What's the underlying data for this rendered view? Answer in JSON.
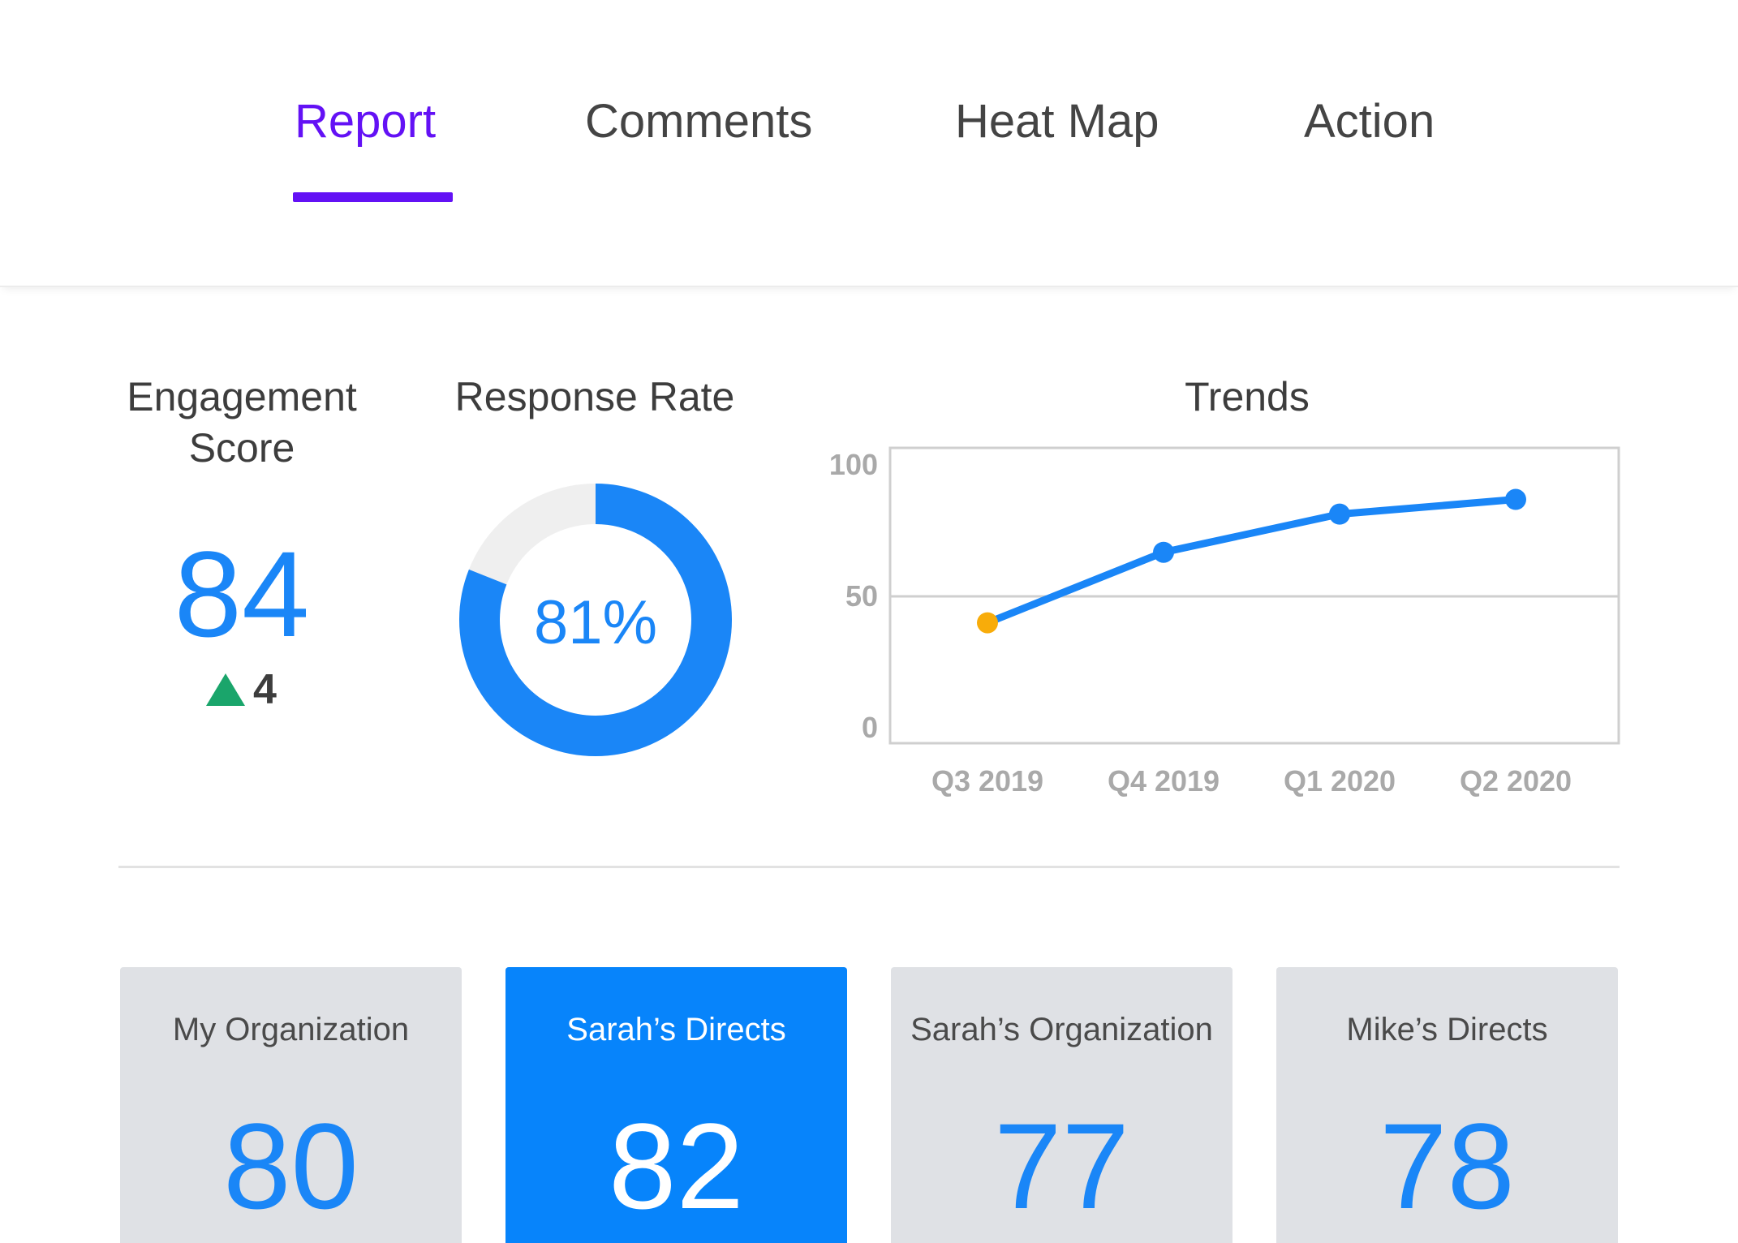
{
  "tabs": [
    {
      "label": "Report",
      "active": true
    },
    {
      "label": "Comments",
      "active": false
    },
    {
      "label": "Heat Map",
      "active": false
    },
    {
      "label": "Action",
      "active": false
    }
  ],
  "colors": {
    "accent": "#6311f5",
    "primary_blue": "#1a86f7",
    "selected_card": "#0784fb",
    "card_bg": "#dfe1e5",
    "positive": "#1aa56b",
    "highlight_point": "#f8ac0a"
  },
  "engagement": {
    "title_line1": "Engagement",
    "title_line2": "Score",
    "value": "84",
    "delta_icon": "up-triangle-icon",
    "delta": "4"
  },
  "response_rate": {
    "title": "Response Rate",
    "label": "81%",
    "value": 81
  },
  "trends": {
    "title": "Trends"
  },
  "chart_data": {
    "type": "line",
    "title": "Trends",
    "categories": [
      "Q3 2019",
      "Q4 2019",
      "Q1 2020",
      "Q2 2020"
    ],
    "series": [
      {
        "values": [
          41,
          65,
          78,
          83
        ]
      }
    ],
    "yticks": [
      "0",
      "50",
      "100"
    ],
    "ylim": [
      0,
      100
    ],
    "grid": "horizontal line at 50",
    "highlight_index": 0
  },
  "cards": [
    {
      "label": "My Organization",
      "value": "80",
      "selected": false
    },
    {
      "label": "Sarah’s Directs",
      "value": "82",
      "selected": true
    },
    {
      "label": "Sarah’s Organization",
      "value": "77",
      "selected": false
    },
    {
      "label": "Mike’s Directs",
      "value": "78",
      "selected": false
    }
  ]
}
